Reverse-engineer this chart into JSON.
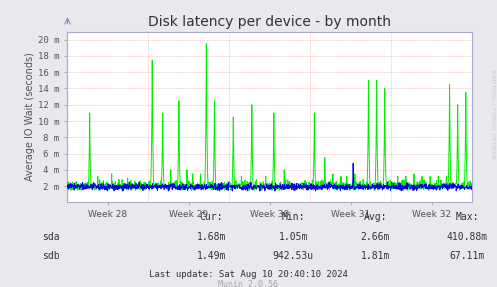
{
  "title": "Disk latency per device - by month",
  "ylabel": "Average IO Wait (seconds)",
  "background_color": "#e8e8ee",
  "plot_bg_color": "#ffffff",
  "x_labels": [
    "Week 28",
    "Week 29",
    "Week 30",
    "Week 31",
    "Week 32"
  ],
  "y_ticks": [
    2,
    4,
    6,
    8,
    10,
    12,
    14,
    16,
    18,
    20
  ],
  "y_tick_labels": [
    "2 m",
    "4 m",
    "6 m",
    "8 m",
    "10 m",
    "12 m",
    "14 m",
    "16 m",
    "18 m",
    "20 m"
  ],
  "ylim": [
    0,
    21
  ],
  "xlim": [
    0,
    5
  ],
  "sda_color": "#00ee00",
  "sdb_color": "#0000ee",
  "footer_text": "Last update: Sat Aug 10 20:40:10 2024",
  "munin_text": "Munin 2.0.56",
  "watermark": "RRDTOOL / TOBIAS OETIKER",
  "table_headers": [
    "Cur:",
    "Min:",
    "Avg:",
    "Max:"
  ],
  "sda_stats": [
    "1.68m",
    "1.05m",
    "2.66m",
    "410.88m"
  ],
  "sdb_stats": [
    "1.49m",
    "942.53u",
    "1.81m",
    "67.11m"
  ]
}
